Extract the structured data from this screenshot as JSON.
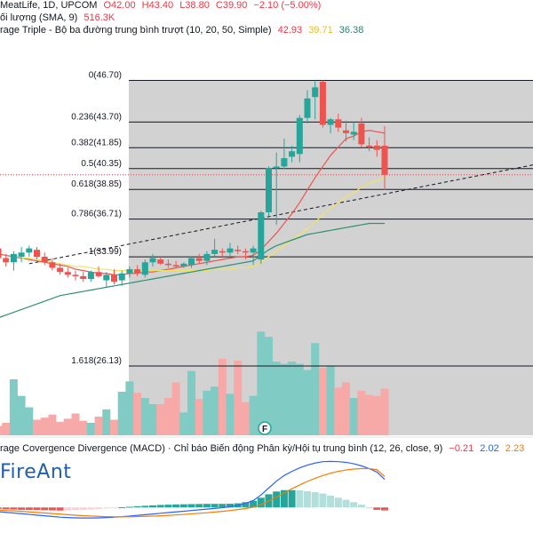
{
  "header": {
    "row1": {
      "name": "MeatLife, 1D, UPCOM",
      "open": "O42.00",
      "high": "H43.40",
      "low": "L38.80",
      "close": "C39.90",
      "change": "−2.10 (−5.00%)"
    },
    "row2": {
      "label": "ối lượng (SMA, 9)",
      "value": "516.3K"
    },
    "row3": {
      "label": "rage Triple - Bộ ba đường trung bình trượt (10, 20, 50, Simple)",
      "v1": "42.93",
      "v2": "39.71",
      "v3": "36.38"
    },
    "macd": {
      "label": "rage Covergence Divergence (MACD) · Chỉ báo Biến động Phân kỳ/Hội tụ trung bình (12, 26, close, 9)",
      "v1": "−0.21",
      "v2": "2.02",
      "v3": "2.23"
    }
  },
  "logo": "FireAnt",
  "event_marker": "F",
  "colors": {
    "up": "#26a69a",
    "down": "#ef5350",
    "ma10": "#ef5350",
    "ma20": "#f2e35e",
    "ma50": "#2f8f74",
    "macd": "#2962ff",
    "signal": "#f57c00",
    "fib_zone": "#d2d2d2"
  },
  "chart_data": {
    "type": "candlestick",
    "price_scale": {
      "min": 23.7,
      "max": 47.5
    },
    "fibonacci": [
      {
        "label": "0(46.70)",
        "level": 0,
        "price": 46.7
      },
      {
        "label": "0.236(43.70)",
        "level": 0.236,
        "price": 43.7
      },
      {
        "label": "0.382(41.85)",
        "level": 0.382,
        "price": 41.85
      },
      {
        "label": "0.5(40.35)",
        "level": 0.5,
        "price": 40.35
      },
      {
        "label": "0.618(38.85)",
        "level": 0.618,
        "price": 38.85
      },
      {
        "label": "0.786(36.71)",
        "level": 0.786,
        "price": 36.71
      },
      {
        "label": "1(33.99)",
        "level": 1,
        "price": 33.99
      },
      {
        "label": "1.618(26.13)",
        "level": 1.618,
        "price": 26.13
      }
    ],
    "last_close": 39.9,
    "trendline": {
      "start_index": 4,
      "start_price": 33.5,
      "end_index": 48,
      "end_price": 38.3
    },
    "candles": [
      {
        "o": 34.6,
        "h": 34.8,
        "l": 33.6,
        "c": 33.9
      },
      {
        "o": 33.9,
        "h": 34.2,
        "l": 33.3,
        "c": 33.6
      },
      {
        "o": 33.6,
        "h": 34.4,
        "l": 33.0,
        "c": 34.2
      },
      {
        "o": 34.0,
        "h": 34.7,
        "l": 33.6,
        "c": 34.3
      },
      {
        "o": 34.3,
        "h": 34.8,
        "l": 34.0,
        "c": 34.6
      },
      {
        "o": 34.5,
        "h": 34.7,
        "l": 33.8,
        "c": 34.0
      },
      {
        "o": 34.0,
        "h": 34.3,
        "l": 33.4,
        "c": 33.6
      },
      {
        "o": 33.6,
        "h": 33.9,
        "l": 33.0,
        "c": 33.2
      },
      {
        "o": 33.2,
        "h": 33.5,
        "l": 32.7,
        "c": 32.9
      },
      {
        "o": 32.9,
        "h": 33.2,
        "l": 32.5,
        "c": 32.7
      },
      {
        "o": 32.7,
        "h": 33.0,
        "l": 32.3,
        "c": 32.6
      },
      {
        "o": 32.6,
        "h": 32.9,
        "l": 32.2,
        "c": 32.4
      },
      {
        "o": 32.4,
        "h": 33.0,
        "l": 32.2,
        "c": 32.9
      },
      {
        "o": 32.9,
        "h": 33.3,
        "l": 32.5,
        "c": 32.6
      },
      {
        "o": 32.3,
        "h": 32.9,
        "l": 31.8,
        "c": 32.7
      },
      {
        "o": 32.7,
        "h": 33.1,
        "l": 32.0,
        "c": 32.2
      },
      {
        "o": 32.3,
        "h": 33.0,
        "l": 31.9,
        "c": 32.8
      },
      {
        "o": 32.8,
        "h": 33.3,
        "l": 32.5,
        "c": 33.1
      },
      {
        "o": 33.1,
        "h": 33.4,
        "l": 32.6,
        "c": 32.8
      },
      {
        "o": 32.7,
        "h": 33.8,
        "l": 32.5,
        "c": 33.6
      },
      {
        "o": 33.6,
        "h": 34.2,
        "l": 33.3,
        "c": 33.9
      },
      {
        "o": 33.8,
        "h": 34.0,
        "l": 33.4,
        "c": 33.5
      },
      {
        "o": 33.5,
        "h": 33.8,
        "l": 33.2,
        "c": 33.4
      },
      {
        "o": 33.4,
        "h": 33.7,
        "l": 33.2,
        "c": 33.3
      },
      {
        "o": 33.3,
        "h": 33.6,
        "l": 33.2,
        "c": 33.5
      },
      {
        "o": 33.4,
        "h": 34.0,
        "l": 33.2,
        "c": 33.9
      },
      {
        "o": 33.9,
        "h": 34.2,
        "l": 33.5,
        "c": 33.7
      },
      {
        "o": 33.7,
        "h": 34.4,
        "l": 33.4,
        "c": 34.2
      },
      {
        "o": 34.2,
        "h": 35.3,
        "l": 34.0,
        "c": 34.5
      },
      {
        "o": 34.4,
        "h": 34.6,
        "l": 34.0,
        "c": 34.3
      },
      {
        "o": 34.3,
        "h": 35.0,
        "l": 34.0,
        "c": 34.6
      },
      {
        "o": 34.5,
        "h": 34.8,
        "l": 34.2,
        "c": 34.4
      },
      {
        "o": 34.4,
        "h": 34.6,
        "l": 33.8,
        "c": 34.3
      },
      {
        "o": 34.3,
        "h": 34.8,
        "l": 33.4,
        "c": 34.6
      },
      {
        "o": 33.8,
        "h": 37.3,
        "l": 33.5,
        "c": 37.2
      },
      {
        "o": 37.2,
        "h": 40.5,
        "l": 36.9,
        "c": 40.4
      },
      {
        "o": 40.4,
        "h": 41.5,
        "l": 36.3,
        "c": 40.5
      },
      {
        "o": 40.5,
        "h": 42.5,
        "l": 40.3,
        "c": 41.1
      },
      {
        "o": 41.2,
        "h": 42.0,
        "l": 40.8,
        "c": 41.6
      },
      {
        "o": 41.4,
        "h": 44.2,
        "l": 40.8,
        "c": 44.0
      },
      {
        "o": 44.0,
        "h": 46.0,
        "l": 43.6,
        "c": 45.4
      },
      {
        "o": 45.5,
        "h": 46.7,
        "l": 43.9,
        "c": 46.2
      },
      {
        "o": 46.6,
        "h": 46.7,
        "l": 43.3,
        "c": 43.5
      },
      {
        "o": 43.5,
        "h": 44.0,
        "l": 42.9,
        "c": 43.9
      },
      {
        "o": 43.9,
        "h": 44.3,
        "l": 43.0,
        "c": 43.3
      },
      {
        "o": 43.1,
        "h": 43.8,
        "l": 42.3,
        "c": 42.9
      },
      {
        "o": 42.8,
        "h": 43.7,
        "l": 42.4,
        "c": 43.0
      },
      {
        "o": 43.6,
        "h": 44.0,
        "l": 41.9,
        "c": 42.1
      },
      {
        "o": 42.0,
        "h": 42.6,
        "l": 41.6,
        "c": 41.9
      },
      {
        "o": 42.0,
        "h": 42.4,
        "l": 41.2,
        "c": 41.7
      },
      {
        "o": 42.0,
        "h": 43.4,
        "l": 38.8,
        "c": 39.9
      }
    ],
    "volume": {
      "max": 1200,
      "values": [
        90,
        120,
        540,
        380,
        270,
        150,
        170,
        200,
        130,
        160,
        210,
        140,
        120,
        180,
        250,
        150,
        420,
        520,
        410,
        360,
        300,
        300,
        360,
        510,
        220,
        620,
        350,
        430,
        470,
        740,
        400,
        720,
        320,
        380,
        1000,
        950,
        710,
        690,
        710,
        690,
        630,
        890,
        650,
        670,
        460,
        510,
        360,
        430,
        390,
        380,
        450
      ]
    },
    "moving_averages": [
      {
        "name": "MA10",
        "values": [
          34.2,
          34.1,
          34.0,
          33.9,
          33.8,
          33.7,
          33.6,
          33.5,
          33.4,
          33.3,
          33.1,
          33.0,
          32.9,
          32.8,
          32.8,
          32.7,
          32.7,
          32.8,
          32.8,
          32.9,
          32.9,
          33.0,
          33.1,
          33.2,
          33.3,
          33.4,
          33.5,
          33.6,
          33.7,
          33.8,
          33.9,
          34.0,
          34.0,
          34.1,
          34.5,
          35.1,
          35.7,
          36.4,
          37.1,
          37.9,
          38.8,
          39.7,
          40.5,
          41.3,
          41.9,
          42.5,
          42.7,
          43.0,
          43.1,
          43.0,
          42.9
        ]
      },
      {
        "name": "MA20",
        "values": [
          null,
          null,
          null,
          33.9,
          33.9,
          33.8,
          33.7,
          33.6,
          33.5,
          33.4,
          33.3,
          33.3,
          33.2,
          33.1,
          33.1,
          33.0,
          33.0,
          33.0,
          33.0,
          33.0,
          33.0,
          33.0,
          33.0,
          33.0,
          33.0,
          33.0,
          33.0,
          33.0,
          33.1,
          33.1,
          33.1,
          33.2,
          33.2,
          33.3,
          33.6,
          34.0,
          34.4,
          34.8,
          35.2,
          35.6,
          36.0,
          36.5,
          37.0,
          37.5,
          37.9,
          38.3,
          38.6,
          39.0,
          39.3,
          39.5,
          39.7
        ]
      },
      {
        "name": "MA50",
        "values": [
          29.6,
          29.8,
          30.0,
          30.2,
          30.4,
          30.6,
          30.8,
          31.0,
          31.2,
          31.3,
          31.4,
          31.5,
          31.6,
          31.7,
          31.8,
          31.9,
          32.0,
          32.1,
          32.2,
          32.3,
          32.4,
          32.5,
          32.6,
          32.7,
          32.8,
          32.9,
          33.0,
          33.1,
          33.2,
          33.3,
          33.4,
          33.5,
          33.6,
          33.7,
          34.1,
          34.5,
          34.8,
          35.0,
          35.2,
          35.4,
          35.6,
          35.7,
          35.8,
          35.9,
          36.0,
          36.1,
          36.2,
          36.3,
          36.4,
          36.4,
          36.4
        ]
      }
    ],
    "macd": {
      "macd_line": [
        -0.3,
        -0.35,
        -0.4,
        -0.45,
        -0.5,
        -0.55,
        -0.6,
        -0.65,
        -0.7,
        -0.73,
        -0.75,
        -0.76,
        -0.76,
        -0.75,
        -0.73,
        -0.7,
        -0.66,
        -0.62,
        -0.57,
        -0.52,
        -0.47,
        -0.42,
        -0.37,
        -0.32,
        -0.27,
        -0.22,
        -0.17,
        -0.12,
        -0.07,
        -0.02,
        0.05,
        0.15,
        0.3,
        0.5,
        0.9,
        1.4,
        1.9,
        2.3,
        2.6,
        2.85,
        3.05,
        3.2,
        3.3,
        3.32,
        3.3,
        3.25,
        3.15,
        3.0,
        2.8,
        2.55,
        2.02
      ],
      "signal_line": [
        -0.2,
        -0.22,
        -0.25,
        -0.28,
        -0.32,
        -0.36,
        -0.4,
        -0.44,
        -0.48,
        -0.52,
        -0.56,
        -0.59,
        -0.62,
        -0.64,
        -0.66,
        -0.67,
        -0.67,
        -0.67,
        -0.66,
        -0.64,
        -0.62,
        -0.6,
        -0.57,
        -0.54,
        -0.5,
        -0.46,
        -0.42,
        -0.38,
        -0.33,
        -0.28,
        -0.22,
        -0.15,
        -0.08,
        0.02,
        0.2,
        0.45,
        0.75,
        1.05,
        1.35,
        1.62,
        1.88,
        2.1,
        2.3,
        2.47,
        2.6,
        2.7,
        2.77,
        2.8,
        2.8,
        2.72,
        2.23
      ],
      "range": [
        -1.2,
        3.6
      ]
    }
  }
}
